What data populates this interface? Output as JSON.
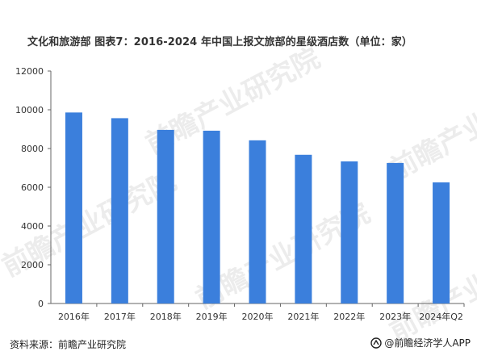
{
  "title": "文化和旅游部  图表7：2016-2024 年中国上报文旅部的星级酒店数（单位：家）",
  "source": "资料来源：前瞻产业研究院",
  "brand": "@前瞻经济学人APP",
  "watermark": "前瞻产业研究院",
  "colors": {
    "bar": "#3b7fdc",
    "axis": "#666666"
  },
  "chart_data": {
    "type": "bar",
    "title": "2016-2024 年中国上报文旅部的星级酒店数（单位：家）",
    "categories": [
      "2016年",
      "2017年",
      "2018年",
      "2019年",
      "2020年",
      "2021年",
      "2022年",
      "2023年",
      "2024年Q2"
    ],
    "series": [
      {
        "values": [
          9860,
          9566,
          8962,
          8920,
          8423,
          7676,
          7337,
          7254,
          6254
        ]
      }
    ],
    "ylim": [
      0,
      12000
    ],
    "yticks": [
      0,
      2000,
      4000,
      6000,
      8000,
      10000,
      12000
    ],
    "grid": false,
    "legend": "none",
    "xlabel": "",
    "ylabel": ""
  }
}
